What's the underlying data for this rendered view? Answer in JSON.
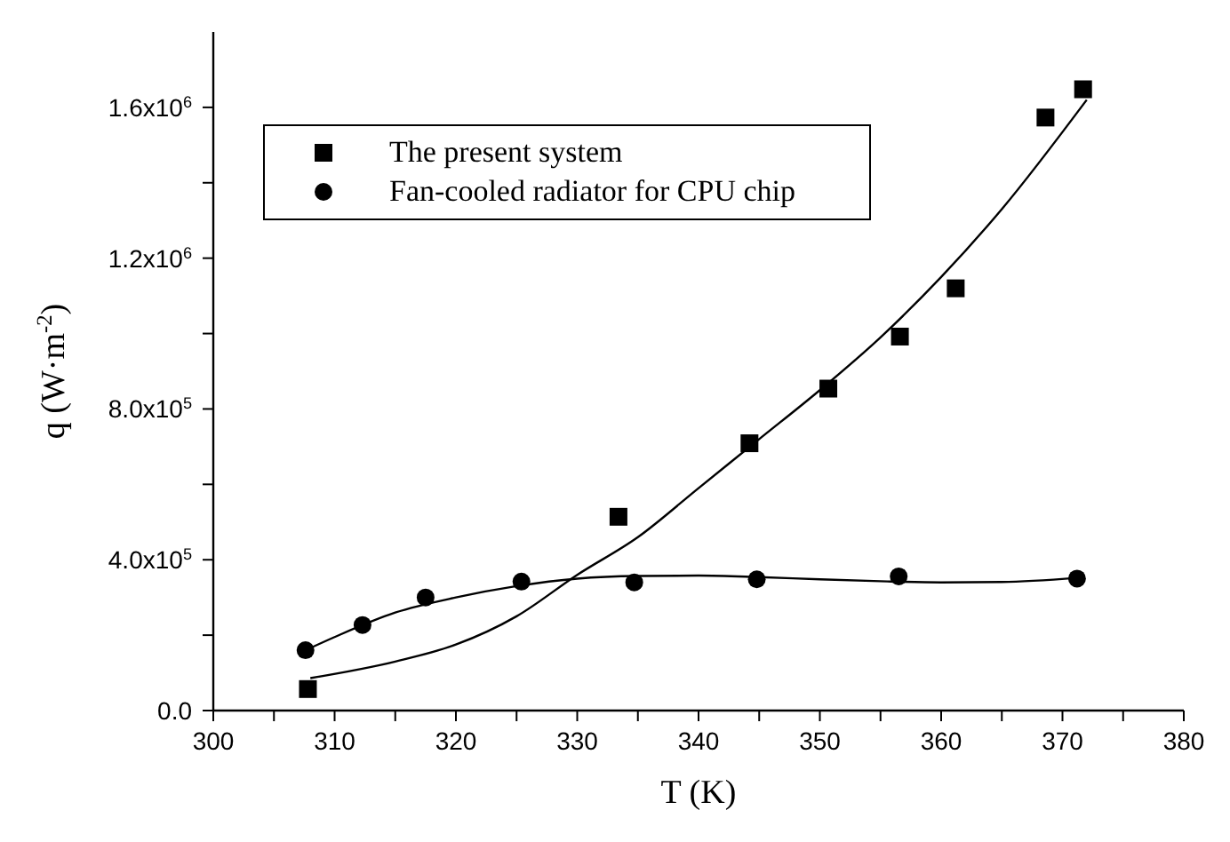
{
  "chart_data": {
    "type": "scatter",
    "xlabel": "T (K)",
    "ylabel": "q (W·m$^{-2}$)",
    "xlim": [
      300,
      380
    ],
    "xticks": [
      300,
      {
        "value": 305,
        "label": null
      },
      310,
      {
        "value": 315,
        "label": null
      },
      320,
      {
        "value": 325,
        "label": null
      },
      330,
      {
        "value": 335,
        "label": null
      },
      340,
      {
        "value": 345,
        "label": null
      },
      350,
      {
        "value": 355,
        "label": null
      },
      360,
      {
        "value": 365,
        "label": null
      },
      370,
      {
        "value": 375,
        "label": null
      },
      380
    ],
    "ylim": [
      0,
      1800000
    ],
    "yticks": [
      {
        "value": 0,
        "label": "0.0"
      },
      {
        "value": 200000,
        "label": null
      },
      {
        "value": 400000,
        "label": "4.0x10$^{5}$"
      },
      {
        "value": 600000,
        "label": null
      },
      {
        "value": 800000,
        "label": "8.0x10$^{5}$"
      },
      {
        "value": 1000000,
        "label": null
      },
      {
        "value": 1200000,
        "label": "1.2x10$^{6}$"
      },
      {
        "value": 1400000,
        "label": null
      },
      {
        "value": 1600000,
        "label": "1.6x10$^{6}$"
      }
    ],
    "grid": false,
    "legend": "top left",
    "series": [
      {
        "name": "The present system",
        "marker": "square",
        "color": "#000000",
        "x": [
          307.8,
          333.4,
          344.2,
          350.7,
          356.6,
          361.2,
          368.6,
          371.7
        ],
        "values": [
          57000,
          514000,
          709000,
          854000,
          992000,
          1120000,
          1573000,
          1648000
        ]
      },
      {
        "name": "Fan-cooled radiator for CPU chip",
        "marker": "circle",
        "color": "#000000",
        "x": [
          307.6,
          312.3,
          317.5,
          325.4,
          334.7,
          344.8,
          356.5,
          371.2
        ],
        "values": [
          160000,
          227000,
          300000,
          342000,
          340000,
          348000,
          356000,
          350000
        ]
      },
      {
        "type": "line",
        "marker": "none",
        "color": "#000000",
        "x": [
          308,
          315,
          320,
          325,
          330,
          335,
          340,
          345,
          350,
          355,
          360,
          365,
          372
        ],
        "values": [
          86000,
          130000,
          175000,
          250000,
          360000,
          460000,
          590000,
          720000,
          850000,
          990000,
          1150000,
          1330000,
          1620000
        ]
      },
      {
        "type": "line",
        "marker": "none",
        "color": "#000000",
        "x": [
          307.6,
          310,
          315,
          320,
          325,
          330,
          335,
          340,
          345,
          350,
          355,
          360,
          365,
          371.2
        ],
        "values": [
          160000,
          195000,
          260000,
          300000,
          330000,
          350000,
          357000,
          358000,
          354000,
          348000,
          343000,
          340000,
          341000,
          352000
        ]
      }
    ]
  }
}
